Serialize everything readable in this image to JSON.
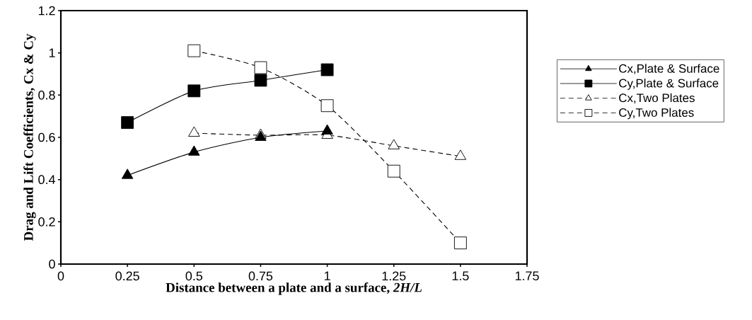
{
  "chart_data": {
    "type": "line",
    "xlabel": "Distance between a plate and a surface, *2H/L*",
    "ylabel": "Drag and Lift Coefficients, Cx & Cy",
    "xlim": [
      0,
      1.75
    ],
    "xticks": [
      0,
      0.25,
      0.5,
      0.75,
      1,
      1.25,
      1.5,
      1.75
    ],
    "ylim": [
      0,
      1.2
    ],
    "yticks": [
      0,
      0.2,
      0.4,
      0.6,
      0.8,
      1,
      1.2
    ],
    "grid": false,
    "legend": "right",
    "series": [
      {
        "name": "Cx,Plate & Surface",
        "color": "#000000",
        "marker": "triangle",
        "line_style": "solid",
        "x": [
          0.25,
          0.5,
          0.75,
          1
        ],
        "values": [
          0.42,
          0.53,
          0.6,
          0.63
        ]
      },
      {
        "name": "Cy,Plate & Surface",
        "color": "#000000",
        "marker": "square",
        "line_style": "solid",
        "x": [
          0.25,
          0.5,
          0.75,
          1
        ],
        "values": [
          0.67,
          0.82,
          0.87,
          0.92
        ]
      },
      {
        "name": "Cx,Two Plates",
        "color": "#000000",
        "marker": "triangle",
        "line_style": "dashed",
        "x": [
          0.5,
          0.75,
          1,
          1.25,
          1.5
        ],
        "values": [
          0.62,
          0.61,
          0.61,
          0.56,
          0.51
        ]
      },
      {
        "name": "Cy,Two Plates",
        "color": "#000000",
        "marker": "square",
        "line_style": "dashed",
        "x": [
          0.5,
          0.75,
          1,
          1.25,
          1.5
        ],
        "values": [
          1.01,
          0.93,
          0.75,
          0.44,
          0.1
        ]
      }
    ]
  }
}
